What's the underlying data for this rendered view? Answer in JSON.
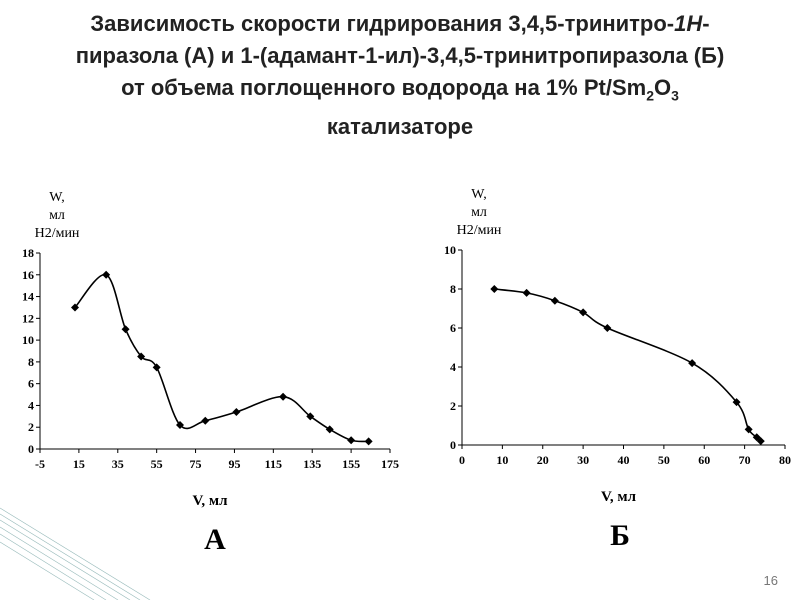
{
  "slide": {
    "title": [
      [
        {
          "text": "Зависимость скорости гидрирования 3,4,5-тринитро-",
          "format": "normal"
        },
        {
          "text": "1H",
          "format": "italic"
        },
        {
          "text": "-",
          "format": "normal"
        }
      ],
      [
        {
          "text": "пиразола (А) и 1-(адамант-1-ил)-3,4,5-тринитропиразола (Б)",
          "format": "normal"
        }
      ],
      [
        {
          "text": "от объема поглощенного водорода на 1% Pt/Sm",
          "format": "normal"
        },
        {
          "text": "2",
          "format": "sub"
        },
        {
          "text": "O",
          "format": "normal"
        },
        {
          "text": "3",
          "format": "sub"
        }
      ],
      [
        {
          "text": "катализаторе",
          "format": "normal"
        }
      ]
    ],
    "page_number": "16"
  },
  "chart_data": [
    {
      "type": "line",
      "caption": "А",
      "xlabel": "V, мл",
      "ylabel": [
        "W,",
        "мл",
        "H2/мин"
      ],
      "color": "#000000",
      "smooth": true,
      "x": [
        13,
        29,
        39,
        47,
        55,
        67,
        80,
        96,
        120,
        134,
        144,
        155,
        164
      ],
      "values": [
        13,
        16,
        11,
        8.5,
        7.5,
        2.2,
        2.6,
        3.4,
        4.8,
        3,
        1.8,
        0.8,
        0.7
      ],
      "xlim": [
        -5,
        175
      ],
      "xticks": [
        -5,
        15,
        35,
        55,
        75,
        95,
        115,
        135,
        155,
        175
      ],
      "ylim": [
        0,
        18
      ],
      "yticks": [
        0,
        2,
        4,
        6,
        8,
        10,
        12,
        14,
        16,
        18
      ]
    },
    {
      "type": "line",
      "caption": "Б",
      "xlabel": "V, мл",
      "ylabel": [
        "W,",
        "мл",
        "H2/мин"
      ],
      "color": "#000000",
      "smooth": true,
      "x": [
        8,
        16,
        23,
        30,
        36,
        57,
        68,
        71,
        73,
        74
      ],
      "values": [
        8,
        7.8,
        7.4,
        6.8,
        6,
        4.2,
        2.2,
        0.8,
        0.4,
        0.2
      ],
      "xlim": [
        0,
        80
      ],
      "xticks": [
        0,
        10,
        20,
        30,
        40,
        50,
        60,
        70,
        80
      ],
      "ylim": [
        0,
        10
      ],
      "yticks": [
        0,
        2,
        4,
        6,
        8,
        10
      ]
    }
  ]
}
